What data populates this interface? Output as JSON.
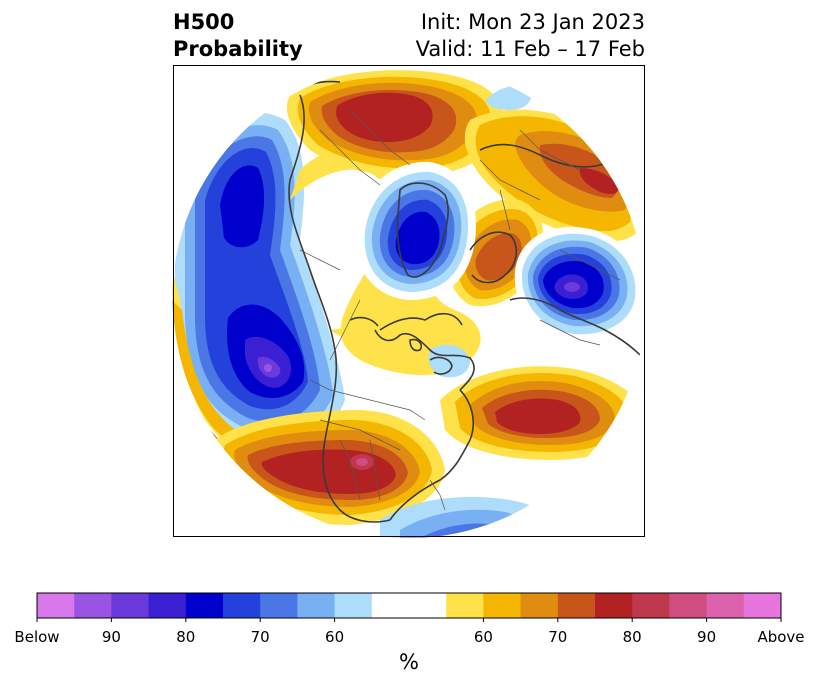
{
  "title": {
    "left_line1": "H500",
    "left_line2": "Probability",
    "right_line1": "Init: Mon 23 Jan 2023",
    "right_line2": "Valid: 11 Feb – 17 Feb"
  },
  "colorbar": {
    "unit_label": "%",
    "tick_labels": [
      "Below",
      "90",
      "80",
      "70",
      "60",
      "60",
      "70",
      "80",
      "90",
      "Above"
    ],
    "colors": [
      "#d978eb",
      "#9955e2",
      "#6a3adc",
      "#3a1fd3",
      "#0000cc",
      "#2442db",
      "#4a77e5",
      "#78b0f3",
      "#aedcfb",
      "#ffffff",
      "#ffffff",
      "#ffe24a",
      "#f4b600",
      "#e08c10",
      "#c8561a",
      "#b22222",
      "#c0384e",
      "#cf4e7f",
      "#dd62ad",
      "#e676de"
    ]
  },
  "colors": {
    "frame": "#000000",
    "coastline": "#3a3a3a",
    "border": "#555555"
  }
}
